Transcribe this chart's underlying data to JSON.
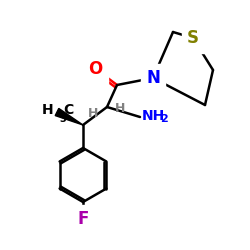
{
  "bg_color": "#ffffff",
  "atom_colors": {
    "O": "#ff0000",
    "N": "#0000ff",
    "S": "#808000",
    "F": "#aa00aa",
    "C": "#000000",
    "H": "#808080",
    "NH2": "#0000ff"
  },
  "figsize": [
    2.5,
    2.5
  ],
  "dpi": 100
}
